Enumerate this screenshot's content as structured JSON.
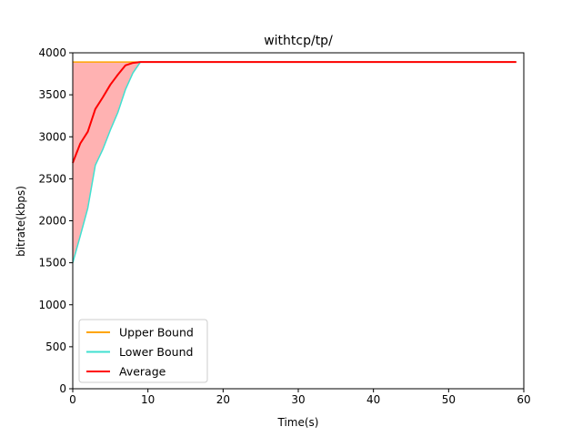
{
  "chart_data": {
    "type": "line",
    "title": "withtcp/tp/",
    "xlabel": "Time(s)",
    "ylabel": "bitrate(kbps)",
    "xlim": [
      0,
      60
    ],
    "ylim": [
      0,
      4000
    ],
    "xticks": [
      0,
      10,
      20,
      30,
      40,
      50,
      60
    ],
    "yticks": [
      0,
      500,
      1000,
      1500,
      2000,
      2500,
      3000,
      3500,
      4000
    ],
    "grid": false,
    "legend_position": "lower-left",
    "fill_between": {
      "lower": "Lower Bound",
      "upper": "Upper Bound",
      "color": "#ff0000",
      "opacity": 0.3
    },
    "series": [
      {
        "name": "Upper Bound",
        "color": "#ffa500",
        "x": [
          0,
          1,
          2,
          3,
          4,
          5,
          6,
          7,
          8,
          9,
          10,
          15,
          20,
          25,
          30,
          35,
          40,
          45,
          50,
          55,
          59
        ],
        "values": [
          3890,
          3890,
          3890,
          3890,
          3890,
          3890,
          3890,
          3890,
          3890,
          3890,
          3890,
          3890,
          3890,
          3890,
          3890,
          3890,
          3890,
          3890,
          3890,
          3890,
          3890
        ]
      },
      {
        "name": "Lower Bound",
        "color": "#40e0d0",
        "x": [
          0,
          1,
          2,
          3,
          4,
          5,
          6,
          7,
          8,
          9,
          10,
          15,
          20,
          25,
          30,
          35,
          40,
          45,
          50,
          55,
          59
        ],
        "values": [
          1500,
          1820,
          2150,
          2660,
          2850,
          3080,
          3290,
          3560,
          3760,
          3890,
          3890,
          3890,
          3890,
          3890,
          3890,
          3890,
          3890,
          3890,
          3890,
          3890,
          3890
        ]
      },
      {
        "name": "Average",
        "color": "#ff0000",
        "x": [
          0,
          1,
          2,
          3,
          4,
          5,
          6,
          7,
          8,
          9,
          10,
          15,
          20,
          25,
          30,
          35,
          40,
          45,
          50,
          55,
          59
        ],
        "values": [
          2690,
          2920,
          3060,
          3330,
          3470,
          3620,
          3740,
          3850,
          3880,
          3890,
          3890,
          3890,
          3890,
          3890,
          3890,
          3890,
          3890,
          3890,
          3890,
          3890,
          3890
        ]
      }
    ]
  }
}
